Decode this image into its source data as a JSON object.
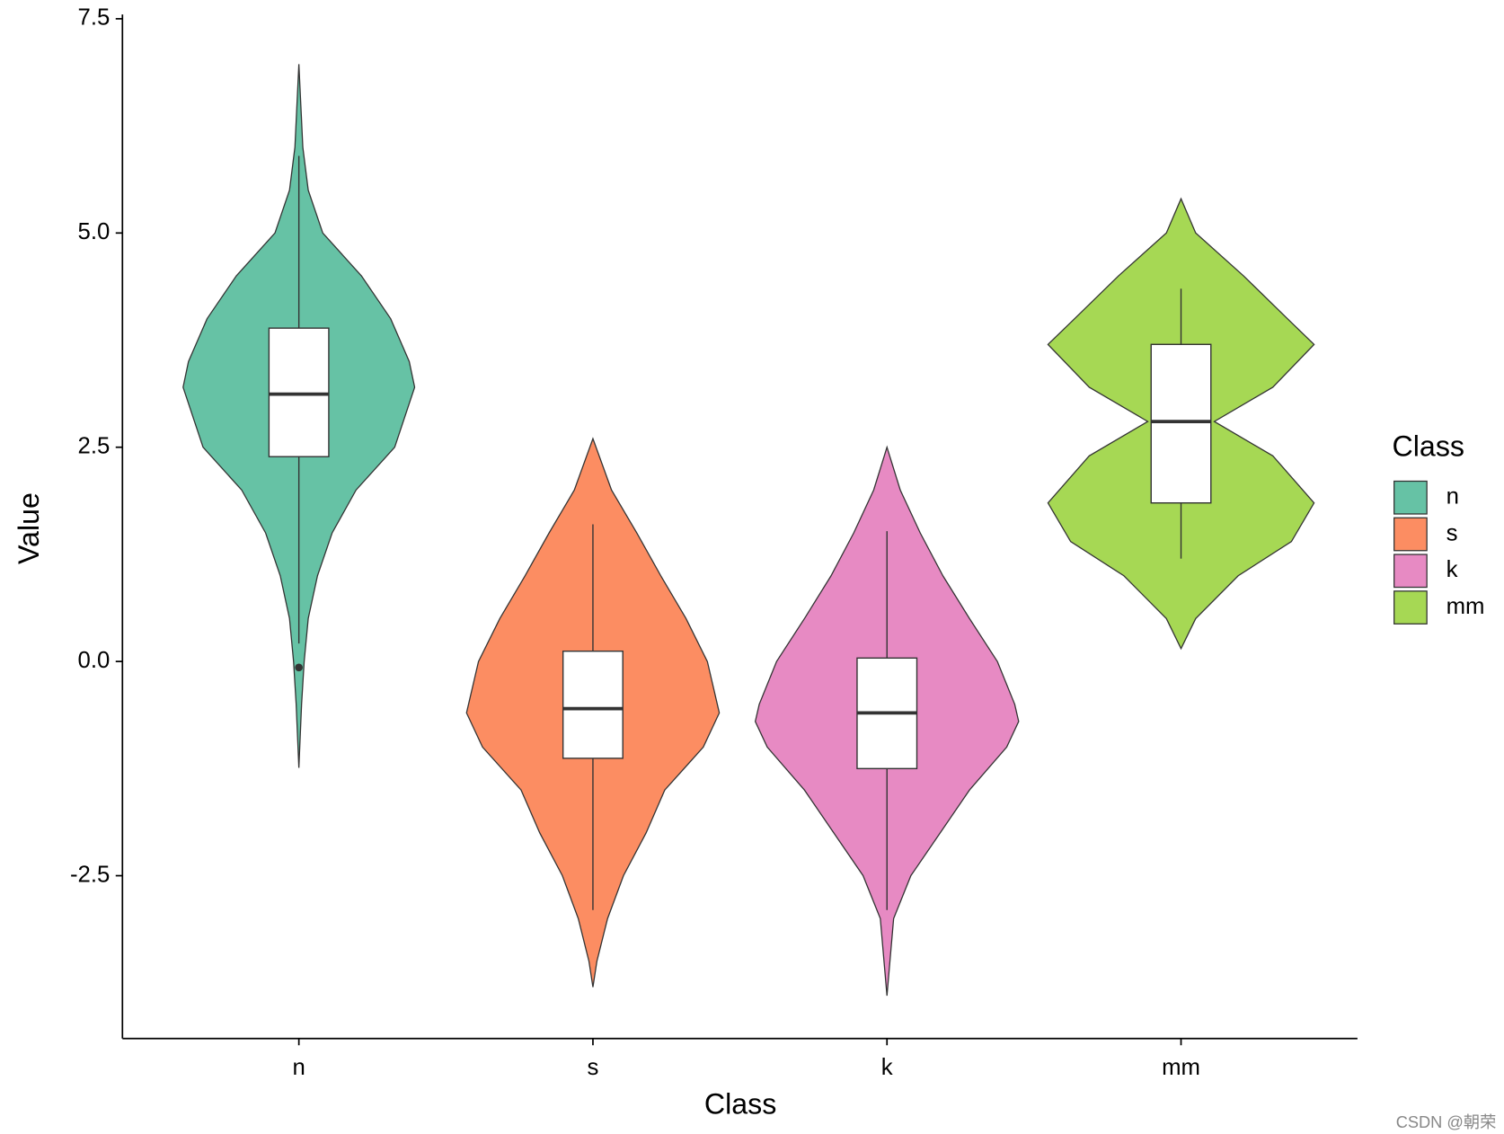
{
  "chart_data": {
    "type": "violin",
    "x_label": "Class",
    "y_label": "Value",
    "categories": [
      "n",
      "s",
      "k",
      "mm"
    ],
    "ylim": [
      -4.4,
      7.55
    ],
    "yticks": [
      {
        "value": -2.5,
        "label": "-2.5"
      },
      {
        "value": 0,
        "label": "0.0"
      },
      {
        "value": 2.5,
        "label": "2.5"
      },
      {
        "value": 5,
        "label": "5.0"
      },
      {
        "value": 7.5,
        "label": "7.5"
      }
    ],
    "legend_title": "Class",
    "legend": "right",
    "series": [
      {
        "name": "n",
        "color": "#66c2a5",
        "whisker_low": 0.21,
        "q1": 2.39,
        "median": 3.12,
        "q3": 3.89,
        "whisker_high": 5.9,
        "outliers": [
          -0.07
        ],
        "violin": {
          "y": [
            -1.24,
            -0.5,
            0,
            0.5,
            1.0,
            1.5,
            2.0,
            2.5,
            3.2,
            3.5,
            4.0,
            4.5,
            5.0,
            5.5,
            6.0,
            6.97
          ],
          "width": [
            0,
            0.02,
            0.04,
            0.07,
            0.14,
            0.25,
            0.43,
            0.72,
            0.87,
            0.83,
            0.69,
            0.47,
            0.18,
            0.07,
            0.03,
            0
          ]
        }
      },
      {
        "name": "s",
        "color": "#fc8d62",
        "whisker_low": -2.9,
        "q1": -1.13,
        "median": -0.55,
        "q3": 0.12,
        "whisker_high": 1.6,
        "outliers": [],
        "violin": {
          "y": [
            -3.8,
            -3.5,
            -3.0,
            -2.5,
            -2.0,
            -1.5,
            -1.0,
            -0.6,
            0,
            0.5,
            1.0,
            1.5,
            2.0,
            2.6
          ],
          "width": [
            0,
            0.03,
            0.11,
            0.23,
            0.4,
            0.54,
            0.83,
            0.95,
            0.86,
            0.7,
            0.51,
            0.33,
            0.14,
            0
          ]
        }
      },
      {
        "name": "k",
        "color": "#e78ac3",
        "whisker_low": -2.9,
        "q1": -1.25,
        "median": -0.6,
        "q3": 0.04,
        "whisker_high": 1.52,
        "outliers": [],
        "violin": {
          "y": [
            -3.9,
            -3.0,
            -2.5,
            -2.0,
            -1.5,
            -1.0,
            -0.7,
            -0.5,
            0,
            0.5,
            1.0,
            1.5,
            2.0,
            2.5
          ],
          "width": [
            0,
            0.05,
            0.18,
            0.4,
            0.62,
            0.9,
            0.99,
            0.96,
            0.83,
            0.62,
            0.42,
            0.25,
            0.1,
            0
          ]
        }
      },
      {
        "name": "mm",
        "color": "#a6d854",
        "whisker_low": 1.2,
        "q1": 1.85,
        "median": 2.8,
        "q3": 3.7,
        "whisker_high": 4.35,
        "outliers": [],
        "violin": {
          "y": [
            0.15,
            0.5,
            1.0,
            1.4,
            1.85,
            2.4,
            2.8,
            3.2,
            3.7,
            4.0,
            4.5,
            5.0,
            5.4
          ],
          "width": [
            0,
            0.11,
            0.43,
            0.83,
            1.0,
            0.69,
            0.25,
            0.69,
            1.0,
            0.8,
            0.47,
            0.11,
            0
          ]
        }
      }
    ],
    "watermark": "CSDN @朝荣"
  }
}
